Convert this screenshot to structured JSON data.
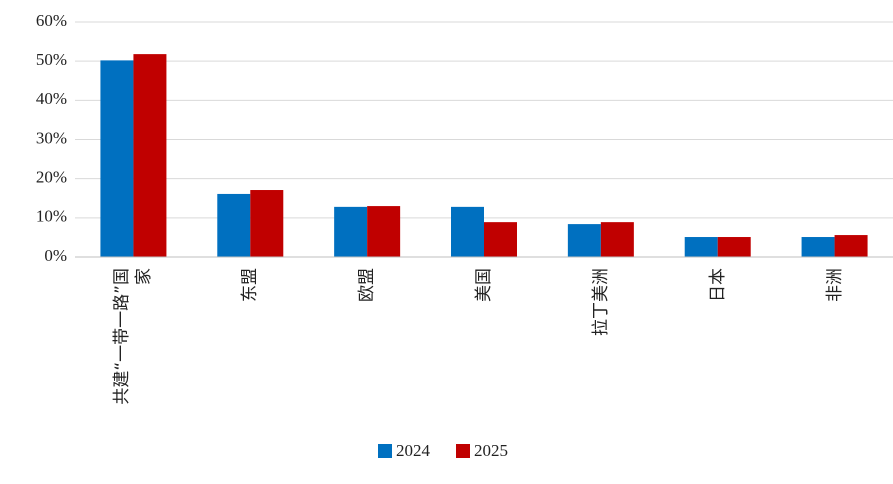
{
  "chart_data": {
    "type": "bar",
    "categories": [
      "共建“一带一路”国家",
      "东盟",
      "欧盟",
      "美国",
      "拉丁美洲",
      "日本",
      "非洲"
    ],
    "series": [
      {
        "name": "2024",
        "color": "#0070c0",
        "values": [
          50.2,
          16.1,
          12.8,
          12.8,
          8.4,
          5.1,
          5.1
        ]
      },
      {
        "name": "2025",
        "color": "#c00000",
        "values": [
          51.8,
          17.1,
          13.0,
          8.9,
          8.9,
          5.1,
          5.6
        ]
      }
    ],
    "ylim": [
      0,
      60
    ],
    "yticks": [
      {
        "value": 0,
        "label": "0%"
      },
      {
        "value": 10,
        "label": "10%"
      },
      {
        "value": 20,
        "label": "20%"
      },
      {
        "value": 30,
        "label": "30%"
      },
      {
        "value": 40,
        "label": "40%"
      },
      {
        "value": 50,
        "label": "50%"
      },
      {
        "value": 60,
        "label": "60%"
      }
    ],
    "grid": true,
    "legend": "bottom"
  }
}
